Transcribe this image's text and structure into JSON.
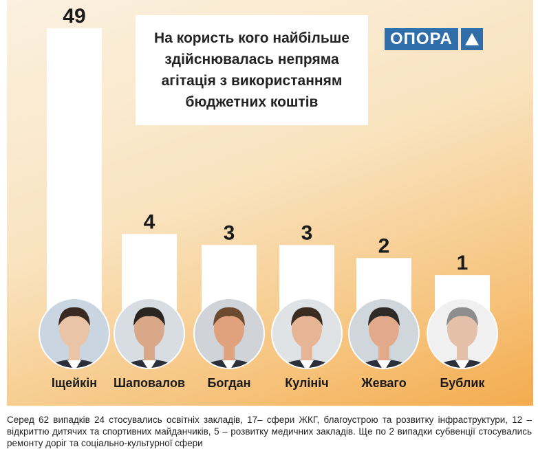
{
  "logo": {
    "text": "ОПОРА"
  },
  "chart_data": {
    "type": "bar",
    "title": "На користь кого найбільше здійснювалась непряма агітація з використанням бюджетних коштів",
    "title_lines": [
      "На користь кого найбільше",
      "здійснювалась непряма",
      "агітація з використанням",
      "бюджетних коштів"
    ],
    "categories": [
      "Іщейкін",
      "Шаповалов",
      "Богдан",
      "Кулініч",
      "Жеваго",
      "Бублик"
    ],
    "values": [
      49,
      4,
      3,
      3,
      2,
      1
    ],
    "value_labels": [
      "49",
      "4",
      "3",
      "3",
      "2",
      "1"
    ],
    "xlabel": "",
    "ylabel": "",
    "grid": false,
    "colors": {
      "bar": "#ffffff",
      "text": "#1a1a1a"
    }
  },
  "caption": "Серед 62 випадків 24 стосувались освітніх закладів, 17– сфери ЖКГ, благоустрою та розвитку інфраструктури, 12 – відкриттю дитячих та спортивних майданчиків, 5 – розвитку медичних закладів. Ще по 2 випадки субвенції стосувались ремонту доріг та соціально-культурної сфери"
}
